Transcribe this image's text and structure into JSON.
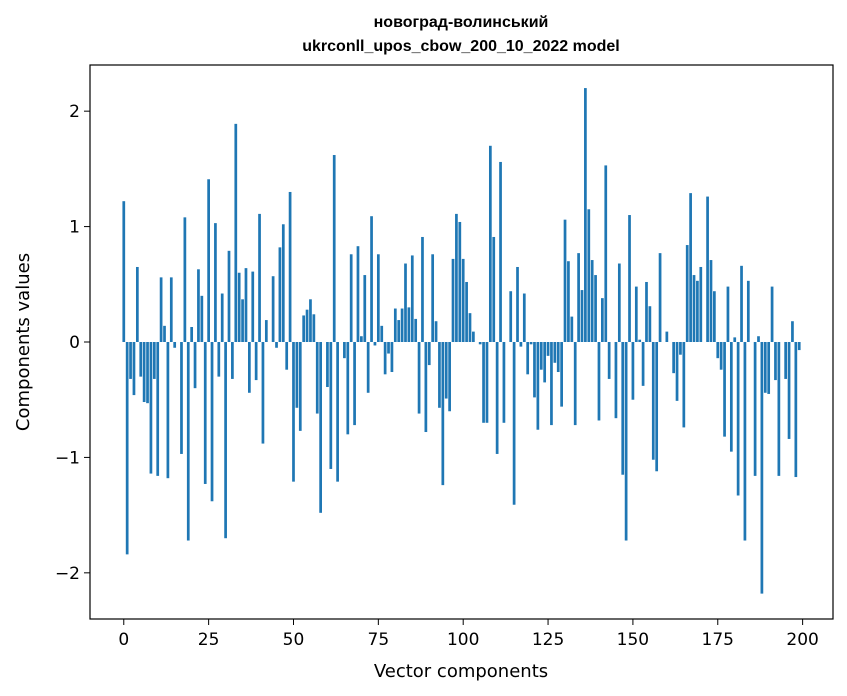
{
  "chart_data": {
    "type": "bar",
    "title_line1": "новоград-волинський",
    "title_line2": "ukrconll_upos_cbow_200_10_2022 model",
    "xlabel": "Vector components",
    "ylabel": "Components values",
    "xlim": [
      -9.95,
      208.95
    ],
    "ylim": [
      -2.4,
      2.4
    ],
    "xticks": [
      0,
      25,
      50,
      75,
      100,
      125,
      150,
      175,
      200
    ],
    "xtick_labels": [
      "0",
      "25",
      "50",
      "75",
      "100",
      "125",
      "150",
      "175",
      "200"
    ],
    "yticks": [
      -2,
      -1,
      0,
      1,
      2
    ],
    "ytick_labels": [
      "−2",
      "−1",
      "0",
      "1",
      "2"
    ],
    "bar_color": "#1f77b4",
    "grid": false,
    "x": [
      0,
      1,
      2,
      3,
      4,
      5,
      6,
      7,
      8,
      9,
      10,
      11,
      12,
      13,
      14,
      15,
      16,
      17,
      18,
      19,
      20,
      21,
      22,
      23,
      24,
      25,
      26,
      27,
      28,
      29,
      30,
      31,
      32,
      33,
      34,
      35,
      36,
      37,
      38,
      39,
      40,
      41,
      42,
      43,
      44,
      45,
      46,
      47,
      48,
      49,
      50,
      51,
      52,
      53,
      54,
      55,
      56,
      57,
      58,
      59,
      60,
      61,
      62,
      63,
      64,
      65,
      66,
      67,
      68,
      69,
      70,
      71,
      72,
      73,
      74,
      75,
      76,
      77,
      78,
      79,
      80,
      81,
      82,
      83,
      84,
      85,
      86,
      87,
      88,
      89,
      90,
      91,
      92,
      93,
      94,
      95,
      96,
      97,
      98,
      99,
      100,
      101,
      102,
      103,
      104,
      105,
      106,
      107,
      108,
      109,
      110,
      111,
      112,
      113,
      114,
      115,
      116,
      117,
      118,
      119,
      120,
      121,
      122,
      123,
      124,
      125,
      126,
      127,
      128,
      129,
      130,
      131,
      132,
      133,
      134,
      135,
      136,
      137,
      138,
      139,
      140,
      141,
      142,
      143,
      144,
      145,
      146,
      147,
      148,
      149,
      150,
      151,
      152,
      153,
      154,
      155,
      156,
      157,
      158,
      159,
      160,
      161,
      162,
      163,
      164,
      165,
      166,
      167,
      168,
      169,
      170,
      171,
      172,
      173,
      174,
      175,
      176,
      177,
      178,
      179,
      180,
      181,
      182,
      183,
      184,
      185,
      186,
      187,
      188,
      189,
      190,
      191,
      192,
      193,
      194,
      195,
      196,
      197,
      198,
      199
    ],
    "values": [
      1.22,
      -1.84,
      -0.32,
      -0.46,
      0.65,
      -0.3,
      -0.52,
      -0.53,
      -1.14,
      -0.32,
      -1.16,
      0.56,
      0.14,
      -1.18,
      0.56,
      -0.05,
      0.0,
      -0.97,
      1.08,
      -1.72,
      0.13,
      -0.4,
      0.63,
      0.4,
      -1.23,
      1.41,
      -1.38,
      1.03,
      -0.3,
      0.42,
      -1.7,
      0.79,
      -0.32,
      1.89,
      0.6,
      0.37,
      0.64,
      -0.44,
      0.61,
      -0.33,
      1.11,
      -0.88,
      0.19,
      0.0,
      0.57,
      -0.05,
      0.82,
      1.02,
      -0.24,
      1.3,
      -1.21,
      -0.57,
      -0.77,
      0.23,
      0.28,
      0.37,
      0.24,
      -0.62,
      -1.48,
      0.0,
      -0.39,
      -1.1,
      1.62,
      -1.21,
      0.0,
      -0.14,
      -0.8,
      0.76,
      -0.72,
      0.83,
      0.05,
      0.58,
      -0.44,
      1.09,
      -0.03,
      0.76,
      0.14,
      -0.28,
      -0.1,
      -0.26,
      0.29,
      0.19,
      0.29,
      0.68,
      0.3,
      0.75,
      0.2,
      -0.62,
      0.91,
      -0.78,
      -0.2,
      0.76,
      0.18,
      -0.57,
      -1.24,
      -0.49,
      -0.6,
      0.72,
      1.11,
      1.04,
      0.72,
      0.52,
      0.25,
      0.09,
      0.0,
      -0.02,
      -0.7,
      -0.7,
      1.7,
      0.91,
      -0.97,
      1.56,
      -0.7,
      0.0,
      0.44,
      -1.41,
      0.65,
      -0.04,
      0.42,
      -0.28,
      -0.02,
      -0.48,
      -0.76,
      -0.24,
      -0.35,
      -0.12,
      -0.72,
      -0.18,
      -0.26,
      -0.56,
      1.06,
      0.7,
      0.22,
      -0.72,
      0.77,
      0.45,
      2.2,
      1.15,
      0.71,
      0.58,
      -0.68,
      0.38,
      1.53,
      -0.32,
      0.0,
      -0.66,
      0.68,
      -1.15,
      -1.72,
      1.1,
      -0.5,
      0.48,
      0.02,
      -0.38,
      0.52,
      0.31,
      -1.02,
      -1.12,
      0.77,
      0.0,
      0.09,
      0.0,
      -0.27,
      -0.51,
      -0.11,
      -0.74,
      0.84,
      1.29,
      0.58,
      0.53,
      0.65,
      0.0,
      1.26,
      0.71,
      0.44,
      -0.14,
      -0.24,
      -0.82,
      0.48,
      -0.95,
      0.04,
      -1.33,
      0.66,
      -1.72,
      0.53,
      0.0,
      -1.16,
      0.05,
      -2.18,
      -0.44,
      -0.45,
      0.48,
      -0.33,
      -1.16,
      0.0,
      -0.32,
      -0.84,
      0.18,
      -1.17,
      -0.07
    ]
  }
}
